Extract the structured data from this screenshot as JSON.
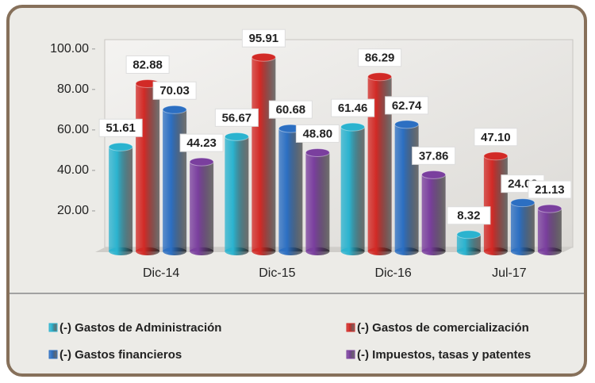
{
  "chart_data": {
    "type": "bar",
    "categories": [
      "Dic-14",
      "Dic-15",
      "Dic-16",
      "Jul-17"
    ],
    "series": [
      {
        "name": "(-) Gastos de Administración",
        "color": "#2bb3cf",
        "values": [
          51.61,
          56.67,
          61.46,
          8.32
        ],
        "value_labels": [
          "51.61",
          "56.67",
          "61.46",
          "8.32"
        ]
      },
      {
        "name": "(-) Gastos de comercialización",
        "color": "#d22a26",
        "values": [
          82.88,
          95.91,
          86.29,
          47.1
        ],
        "value_labels": [
          "82.88",
          "95.91",
          "86.29",
          "47.10"
        ]
      },
      {
        "name": "(-) Gastos financieros",
        "color": "#2c6fc2",
        "values": [
          70.03,
          60.68,
          62.74,
          24.03
        ],
        "value_labels": [
          "70.03",
          "60.68",
          "62.74",
          "24.03"
        ]
      },
      {
        "name": "(-) Impuestos, tasas y patentes",
        "color": "#7a3f9e",
        "values": [
          44.23,
          48.8,
          37.86,
          21.13
        ],
        "value_labels": [
          "44.23",
          "48.80",
          "37.86",
          "21.13"
        ]
      }
    ],
    "ylim": [
      0,
      105
    ],
    "yticks": [
      {
        "value": 20,
        "label": "20.00"
      },
      {
        "value": 40,
        "label": "40.00"
      },
      {
        "value": 60,
        "label": "60.00"
      },
      {
        "value": 80,
        "label": "80.00"
      },
      {
        "value": 100,
        "label": "100.00"
      }
    ],
    "grid": false,
    "legend": "bottom"
  }
}
